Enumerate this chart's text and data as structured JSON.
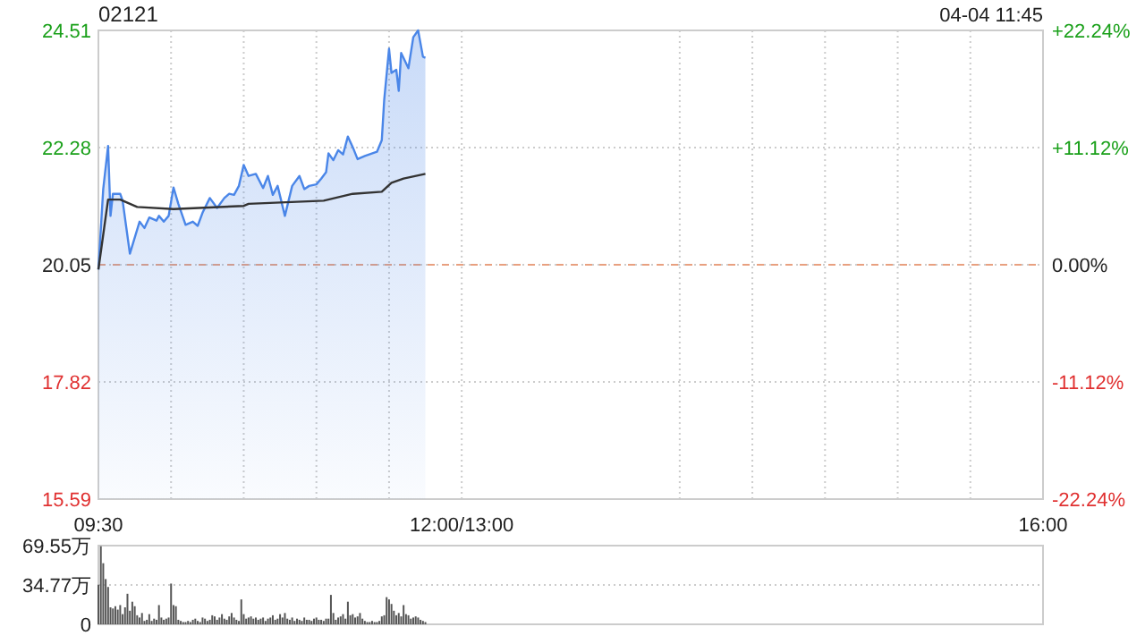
{
  "chart_data": [
    {
      "type": "area",
      "title": "02121",
      "annotations": [
        "04-04 11:45"
      ],
      "xlim": [
        9.5,
        16
      ],
      "xticks": [
        {
          "value": 9.5,
          "label": "09:30"
        },
        {
          "value": 10,
          "label": null
        },
        {
          "value": 10.5,
          "label": null
        },
        {
          "value": 11,
          "label": null
        },
        {
          "value": 11.5,
          "label": null
        },
        {
          "value": 12,
          "label": "12:00/13:00"
        },
        {
          "value": 13.5,
          "label": null
        },
        {
          "value": 14,
          "label": null
        },
        {
          "value": 14.5,
          "label": null
        },
        {
          "value": 15,
          "label": null
        },
        {
          "value": 15.5,
          "label": null
        },
        {
          "value": 16,
          "label": "16:00"
        }
      ],
      "ylim": [
        15.59,
        24.51
      ],
      "yticks": [
        15.59,
        17.82,
        20.05,
        22.28,
        24.51
      ],
      "y2lim": [
        -22.24,
        22.24
      ],
      "y2ticks": [
        {
          "value": -22.24,
          "label": "-22.24%"
        },
        {
          "value": -11.12,
          "label": "-11.12%"
        },
        {
          "value": 0,
          "label": "0.00%"
        },
        {
          "value": 11.12,
          "label": "+11.12%"
        },
        {
          "value": 22.24,
          "label": "+22.24%"
        }
      ],
      "grid": true,
      "ref_lines": [
        {
          "axis": "y",
          "value": 20.05,
          "color": "#e8a080",
          "line_style": "dashed"
        }
      ],
      "series": [
        {
          "color": "#4a86e8",
          "x": [
            9.5,
            9.5333,
            9.5667,
            9.5833,
            9.6,
            9.65,
            9.6667,
            9.7167,
            9.7833,
            9.8167,
            9.85,
            9.9,
            9.9167,
            9.95,
            9.9833,
            10.0167,
            10.05,
            10.1,
            10.15,
            10.1833,
            10.2167,
            10.2667,
            10.3167,
            10.3667,
            10.4,
            10.4333,
            10.4667,
            10.5,
            10.5333,
            10.5833,
            10.6333,
            10.6667,
            10.7,
            10.7333,
            10.7833,
            10.8333,
            10.8833,
            10.9167,
            10.95,
            11,
            11.0333,
            11.0667,
            11.0833,
            11.1167,
            11.15,
            11.1833,
            11.2167,
            11.25,
            11.2833,
            11.3333,
            11.4167,
            11.45,
            11.4667,
            11.5,
            11.5167,
            11.55,
            11.5667,
            11.5833,
            11.6333,
            11.6667,
            11.7,
            11.7333,
            11.75
          ],
          "values": [
            19.96,
            21.49,
            22.31,
            20.98,
            21.4,
            21.4,
            21.27,
            20.26,
            20.87,
            20.75,
            20.95,
            20.89,
            20.98,
            20.87,
            20.98,
            21.52,
            21.21,
            20.81,
            20.87,
            20.79,
            21.04,
            21.32,
            21.13,
            21.32,
            21.4,
            21.38,
            21.55,
            21.95,
            21.74,
            21.78,
            21.51,
            21.74,
            21.38,
            21.55,
            20.98,
            21.55,
            21.74,
            21.49,
            21.55,
            21.58,
            21.69,
            21.81,
            22.17,
            22.04,
            22.23,
            22.15,
            22.49,
            22.29,
            22.06,
            22.12,
            22.2,
            22.42,
            23.19,
            24.16,
            23.7,
            23.76,
            23.36,
            24.08,
            23.79,
            24.38,
            24.51,
            24.01,
            23.99
          ]
        },
        {
          "type": "line",
          "color": "#333333",
          "x": [
            9.5,
            9.5667,
            9.65,
            9.7667,
            10.0167,
            10.5,
            10.5333,
            11.05,
            11.25,
            11.45,
            11.5167,
            11.6,
            11.75
          ],
          "values": [
            19.96,
            21.29,
            21.29,
            21.15,
            21.11,
            21.17,
            21.21,
            21.27,
            21.4,
            21.44,
            21.61,
            21.69,
            21.78
          ]
        }
      ]
    },
    {
      "type": "bar",
      "xlim": [
        9.5,
        16
      ],
      "ylim": [
        0,
        69.55
      ],
      "yticks": [
        0,
        {
          "value": 34.77,
          "label": "34.77万"
        },
        {
          "value": 69.55,
          "label": "69.55万"
        }
      ],
      "grid": "y",
      "tick_labels": "y",
      "series": [
        {
          "color": "#555555",
          "x": [
            9.5,
            9.5167,
            9.5333,
            9.55,
            9.5667,
            9.5833,
            9.6,
            9.6167,
            9.6333,
            9.65,
            9.6667,
            9.6833,
            9.7,
            9.7167,
            9.7333,
            9.75,
            9.7667,
            9.7833,
            9.8,
            9.8167,
            9.8333,
            9.85,
            9.8667,
            9.8833,
            9.9,
            9.9167,
            9.9333,
            9.95,
            9.9667,
            9.9833,
            10,
            10.0167,
            10.0333,
            10.05,
            10.0667,
            10.0833,
            10.1,
            10.1167,
            10.1333,
            10.15,
            10.1667,
            10.1833,
            10.2,
            10.2167,
            10.2333,
            10.25,
            10.2667,
            10.2833,
            10.3,
            10.3167,
            10.3333,
            10.35,
            10.3667,
            10.3833,
            10.4,
            10.4167,
            10.4333,
            10.45,
            10.4667,
            10.4833,
            10.5,
            10.5167,
            10.5333,
            10.55,
            10.5667,
            10.5833,
            10.6,
            10.6167,
            10.6333,
            10.65,
            10.6667,
            10.6833,
            10.7,
            10.7167,
            10.7333,
            10.75,
            10.7667,
            10.7833,
            10.8,
            10.8167,
            10.8333,
            10.85,
            10.8667,
            10.8833,
            10.9,
            10.9167,
            10.9333,
            10.95,
            10.9667,
            10.9833,
            11,
            11.0167,
            11.0333,
            11.05,
            11.0667,
            11.0833,
            11.1,
            11.1167,
            11.1333,
            11.15,
            11.1667,
            11.1833,
            11.2,
            11.2167,
            11.2333,
            11.25,
            11.2667,
            11.2833,
            11.3,
            11.3167,
            11.3333,
            11.35,
            11.3667,
            11.3833,
            11.4,
            11.4167,
            11.4333,
            11.45,
            11.4667,
            11.4833,
            11.5,
            11.5167,
            11.5333,
            11.55,
            11.5667,
            11.5833,
            11.6,
            11.6167,
            11.6333,
            11.65,
            11.6667,
            11.6833,
            11.7,
            11.7167,
            11.7333,
            11.75
          ],
          "values": [
            35,
            69,
            54,
            40,
            33,
            15,
            14,
            16,
            13,
            17,
            9,
            15,
            27,
            12,
            20,
            16,
            8,
            6,
            10,
            3,
            4,
            9,
            3,
            5,
            4,
            17,
            6,
            4,
            5,
            6,
            36,
            17,
            16,
            4,
            3,
            2,
            2,
            3,
            2,
            4,
            5,
            3,
            2,
            6,
            5,
            3,
            4,
            8,
            7,
            4,
            6,
            9,
            5,
            4,
            7,
            10,
            6,
            4,
            3,
            22,
            9,
            5,
            6,
            7,
            5,
            6,
            4,
            5,
            6,
            3,
            5,
            6,
            8,
            4,
            5,
            9,
            6,
            10,
            5,
            4,
            6,
            3,
            5,
            4,
            3,
            6,
            4,
            4,
            3,
            5,
            6,
            4,
            4,
            3,
            5,
            5,
            26,
            10,
            4,
            6,
            7,
            9,
            5,
            20,
            8,
            9,
            6,
            7,
            10,
            5,
            3,
            2,
            2,
            3,
            2,
            2,
            3,
            7,
            8,
            24,
            22,
            18,
            12,
            8,
            10,
            7,
            17,
            9,
            8,
            5,
            6,
            7,
            6,
            4,
            3,
            2
          ]
        }
      ]
    }
  ]
}
